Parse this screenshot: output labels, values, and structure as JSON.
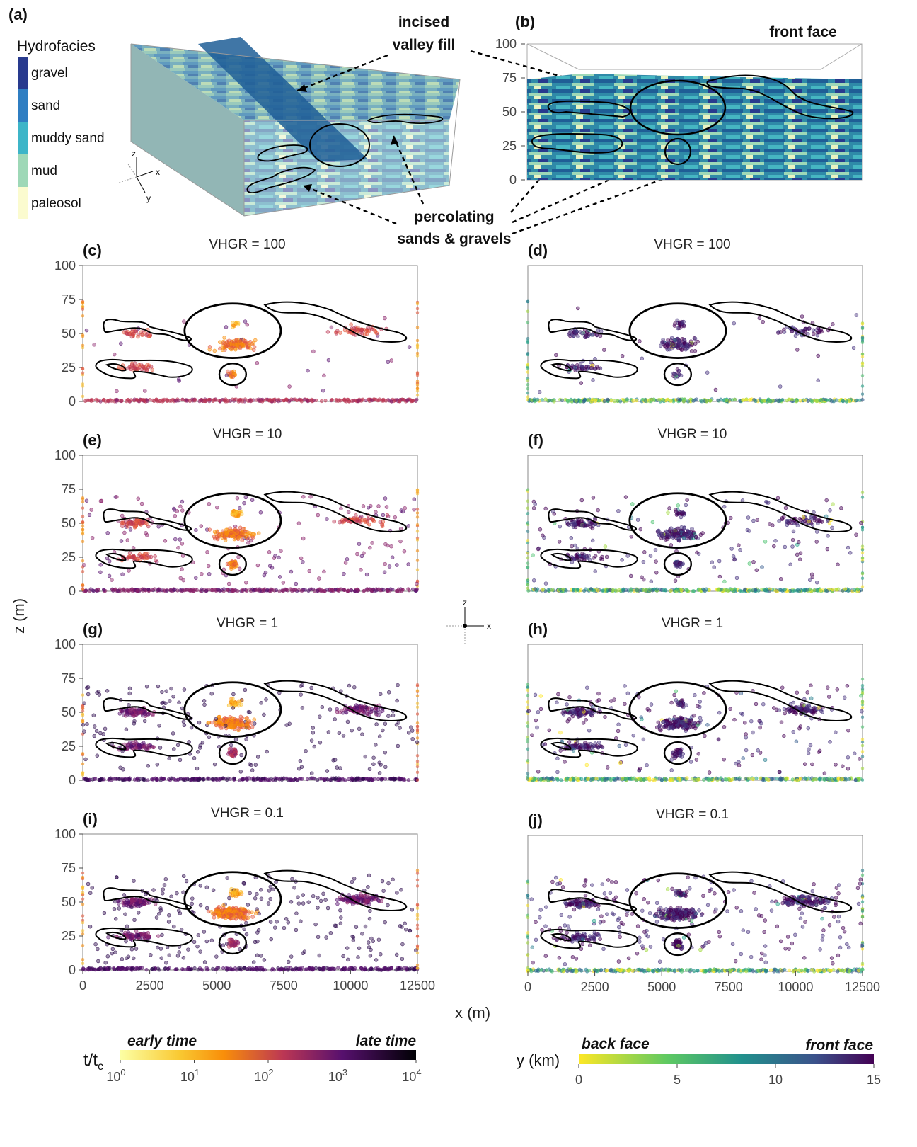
{
  "panel_a": {
    "label": "(a)",
    "legend_title": "Hydrofacies",
    "legend_items": [
      {
        "name": "gravel",
        "color": "#283a8e"
      },
      {
        "name": "sand",
        "color": "#2f7ec2"
      },
      {
        "name": "muddy sand",
        "color": "#3db5c8"
      },
      {
        "name": "mud",
        "color": "#9ed8b7"
      },
      {
        "name": "paleosol",
        "color": "#fbfbcf"
      }
    ],
    "axis_z": "z",
    "axis_x": "x",
    "axis_y": "y"
  },
  "panel_b": {
    "label": "(b)",
    "front_face_label": "front face",
    "yticks": [
      "100",
      "75",
      "50",
      "25",
      "0"
    ]
  },
  "annotations": {
    "incised_line1": "incised",
    "incised_line2": "valley fill",
    "perc_line1": "percolating",
    "perc_line2": "sands & gravels"
  },
  "center_axis": {
    "z": "z",
    "x": "x"
  },
  "shared_axes": {
    "ylabel": "z (m)",
    "xlabel": "x (m)",
    "xticks": [
      "0",
      "2500",
      "5000",
      "7500",
      "10000",
      "12500"
    ],
    "yticks": [
      "100",
      "75",
      "50",
      "25",
      "0"
    ]
  },
  "chart_data": [
    {
      "id": "c",
      "type": "scatter",
      "label": "(c)",
      "title": "VHGR = 100",
      "color_by": "time",
      "xlim": [
        0,
        12500
      ],
      "ylim": [
        0,
        100
      ]
    },
    {
      "id": "d",
      "type": "scatter",
      "label": "(d)",
      "title": "VHGR = 100",
      "color_by": "y",
      "xlim": [
        0,
        12500
      ],
      "ylim": [
        0,
        100
      ]
    },
    {
      "id": "e",
      "type": "scatter",
      "label": "(e)",
      "title": "VHGR = 10",
      "color_by": "time",
      "xlim": [
        0,
        12500
      ],
      "ylim": [
        0,
        100
      ]
    },
    {
      "id": "f",
      "type": "scatter",
      "label": "(f)",
      "title": "VHGR = 10",
      "color_by": "y",
      "xlim": [
        0,
        12500
      ],
      "ylim": [
        0,
        100
      ]
    },
    {
      "id": "g",
      "type": "scatter",
      "label": "(g)",
      "title": "VHGR = 1",
      "color_by": "time",
      "xlim": [
        0,
        12500
      ],
      "ylim": [
        0,
        100
      ]
    },
    {
      "id": "h",
      "type": "scatter",
      "label": "(h)",
      "title": "VHGR = 1",
      "color_by": "y",
      "xlim": [
        0,
        12500
      ],
      "ylim": [
        0,
        100
      ]
    },
    {
      "id": "i",
      "type": "scatter",
      "label": "(i)",
      "title": "VHGR = 0.1",
      "color_by": "time",
      "xlim": [
        0,
        12500
      ],
      "ylim": [
        0,
        100
      ]
    },
    {
      "id": "j",
      "type": "scatter",
      "label": "(j)",
      "title": "VHGR = 0.1",
      "color_by": "y",
      "xlim": [
        0,
        12500
      ],
      "ylim": [
        0,
        100
      ]
    }
  ],
  "colorbar_time": {
    "early_label": "early time",
    "late_label": "late time",
    "ticks": [
      "10",
      "10",
      "10",
      "10",
      "10"
    ],
    "exponents": [
      "0",
      "1",
      "2",
      "3",
      "4"
    ],
    "colors": [
      "#fcffa4",
      "#f98e09",
      "#bc3754",
      "#57106e",
      "#000004"
    ]
  },
  "colorbar_y": {
    "title": "y (km)",
    "back_label": "back face",
    "front_label": "front face",
    "ticks": [
      "0",
      "5",
      "10",
      "15"
    ],
    "colors": [
      "#fde725",
      "#5ec962",
      "#21918c",
      "#3b528b",
      "#440154"
    ]
  }
}
